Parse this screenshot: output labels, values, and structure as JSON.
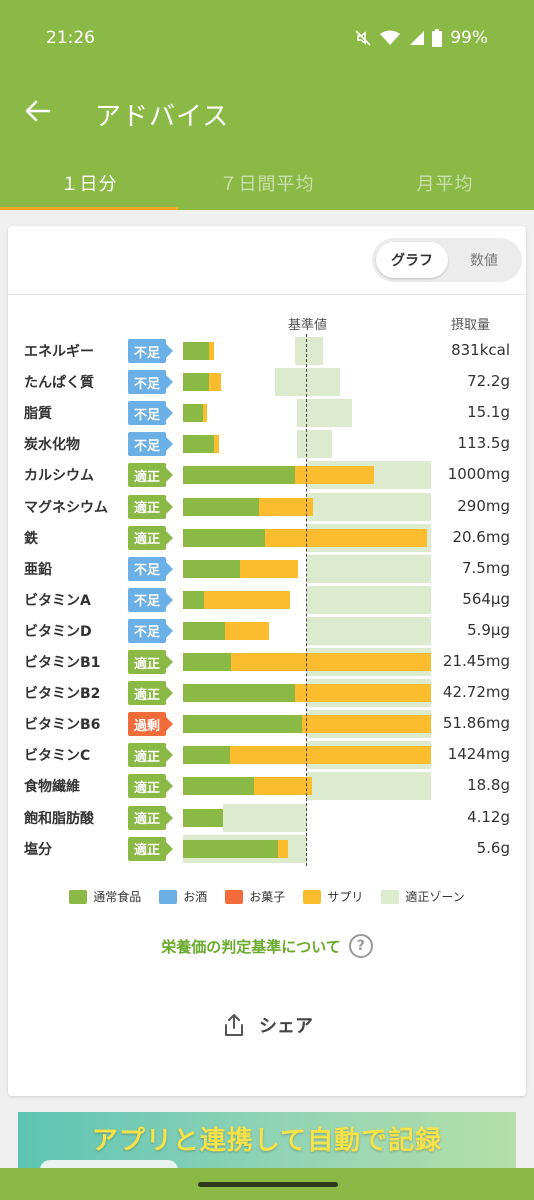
{
  "status_bar": {
    "time": "21:26",
    "battery": "99%"
  },
  "toolbar": {
    "title": "アドバイス"
  },
  "tabs": [
    {
      "label": "１日分",
      "active": true
    },
    {
      "label": "７日間平均",
      "active": false
    },
    {
      "label": "月平均",
      "active": false
    }
  ],
  "view_toggle": {
    "graph": "グラフ",
    "number": "数値",
    "selected": "graph"
  },
  "headers": {
    "reference": "基準値",
    "intake": "摂取量"
  },
  "colors": {
    "primary": "#8ab946",
    "food": "#8ab946",
    "alcohol": "#6aafe6",
    "snacks": "#f26b3a",
    "supplement": "#fbbc2d",
    "zone": "#dcebcd",
    "badge_deficit": "#6aafe6",
    "badge_ok": "#8ab946",
    "badge_excess": "#f26b3a"
  },
  "nutrients": [
    {
      "name": "エネルギー",
      "status": "不足",
      "status_kind": "deficit",
      "amount": "831kcal",
      "food": 0.21,
      "supp": 0.04,
      "zone": [
        0.9,
        1.13
      ]
    },
    {
      "name": "たんぱく質",
      "status": "不足",
      "status_kind": "deficit",
      "amount": "72.2g",
      "food": 0.21,
      "supp": 0.1,
      "zone": [
        0.74,
        1.27
      ]
    },
    {
      "name": "脂質",
      "status": "不足",
      "status_kind": "deficit",
      "amount": "15.1g",
      "food": 0.16,
      "supp": 0.03,
      "zone": [
        0.92,
        1.36
      ]
    },
    {
      "name": "炭水化物",
      "status": "不足",
      "status_kind": "deficit",
      "amount": "113.5g",
      "food": 0.25,
      "supp": 0.04,
      "zone": [
        0.92,
        1.2
      ]
    },
    {
      "name": "カルシウム",
      "status": "適正",
      "status_kind": "ok",
      "amount": "1000mg",
      "food": 0.9,
      "supp": 0.64,
      "zone": [
        1.0,
        2.0
      ]
    },
    {
      "name": "マグネシウム",
      "status": "適正",
      "status_kind": "ok",
      "amount": "290mg",
      "food": 0.61,
      "supp": 0.44,
      "zone": [
        1.0,
        2.0
      ]
    },
    {
      "name": "鉄",
      "status": "適正",
      "status_kind": "ok",
      "amount": "20.6mg",
      "food": 0.66,
      "supp": 1.31,
      "zone": [
        1.0,
        2.0
      ]
    },
    {
      "name": "亜鉛",
      "status": "不足",
      "status_kind": "deficit",
      "amount": "7.5mg",
      "food": 0.46,
      "supp": 0.47,
      "zone": [
        1.0,
        2.0
      ]
    },
    {
      "name": "ビタミンA",
      "status": "不足",
      "status_kind": "deficit",
      "amount": "564μg",
      "food": 0.17,
      "supp": 0.69,
      "zone": [
        1.0,
        2.0
      ]
    },
    {
      "name": "ビタミンD",
      "status": "不足",
      "status_kind": "deficit",
      "amount": "5.9μg",
      "food": 0.34,
      "supp": 0.35,
      "zone": [
        1.0,
        2.0
      ]
    },
    {
      "name": "ビタミンB1",
      "status": "適正",
      "status_kind": "ok",
      "amount": "21.45mg",
      "food": 0.39,
      "supp": 1.61,
      "zone": [
        1.0,
        2.0
      ]
    },
    {
      "name": "ビタミンB2",
      "status": "適正",
      "status_kind": "ok",
      "amount": "42.72mg",
      "food": 0.9,
      "supp": 1.1,
      "zone": [
        1.0,
        2.0
      ]
    },
    {
      "name": "ビタミンB6",
      "status": "過剰",
      "status_kind": "excess",
      "amount": "51.86mg",
      "food": 0.96,
      "supp": 1.04,
      "zone": [
        1.0,
        2.0
      ]
    },
    {
      "name": "ビタミンC",
      "status": "適正",
      "status_kind": "ok",
      "amount": "1424mg",
      "food": 0.38,
      "supp": 1.62,
      "zone": [
        1.0,
        2.0
      ]
    },
    {
      "name": "食物繊維",
      "status": "適正",
      "status_kind": "ok",
      "amount": "18.8g",
      "food": 0.57,
      "supp": 0.47,
      "zone": [
        1.0,
        2.0
      ]
    },
    {
      "name": "飽和脂肪酸",
      "status": "適正",
      "status_kind": "ok",
      "amount": "4.12g",
      "food": 0.32,
      "supp": 0.0,
      "zone": [
        0.32,
        1.0
      ]
    },
    {
      "name": "塩分",
      "status": "適正",
      "status_kind": "ok",
      "amount": "5.6g",
      "food": 0.77,
      "supp": 0.08,
      "zone": [
        0.0,
        1.0
      ]
    }
  ],
  "legend": [
    {
      "label": "通常食品",
      "color": "#8ab946"
    },
    {
      "label": "お酒",
      "color": "#6aafe6"
    },
    {
      "label": "お菓子",
      "color": "#f26b3a"
    },
    {
      "label": "サプリ",
      "color": "#fbbc2d"
    },
    {
      "label": "適正ゾーン",
      "color": "#dcebcd"
    }
  ],
  "criteria_link": "栄養価の判定基準について",
  "share_label": "シェア",
  "banner": {
    "text": "アプリと連携して自動で記録"
  }
}
